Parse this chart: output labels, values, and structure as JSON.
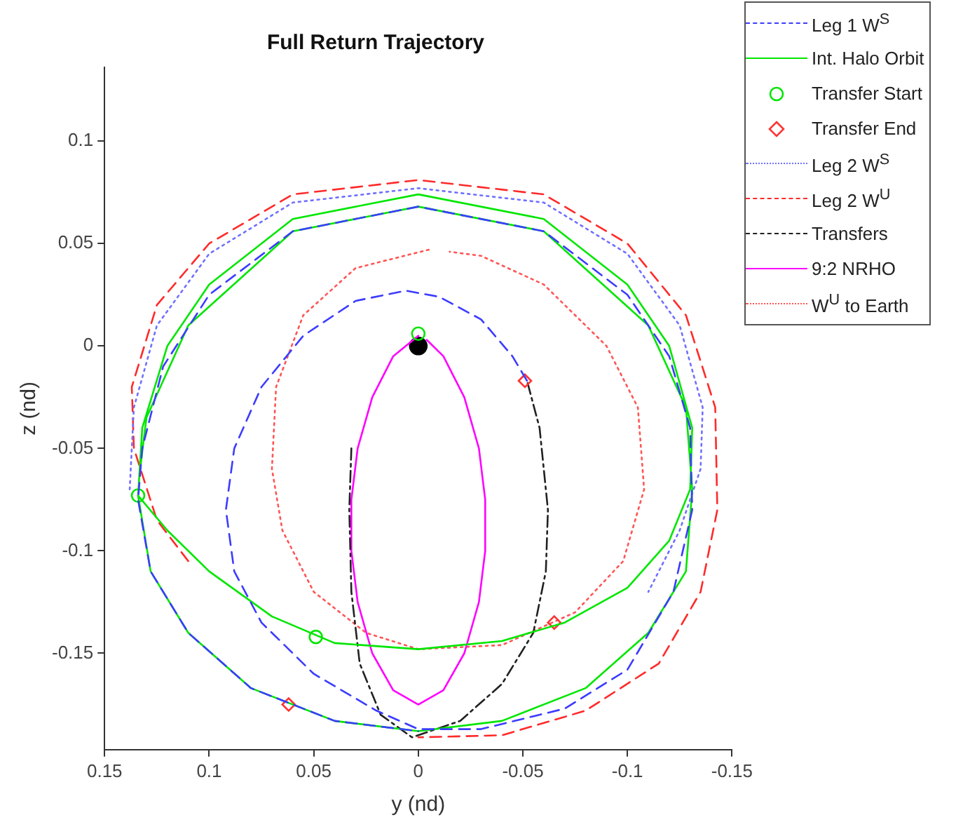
{
  "chart_data": {
    "type": "line",
    "title": "Full Return Trajectory",
    "xlabel": "y (nd)",
    "ylabel": "z (nd)",
    "xlim": [
      0.15,
      -0.15
    ],
    "xticks": [
      0.15,
      0.1,
      0.05,
      0,
      -0.05,
      -0.1,
      -0.15
    ],
    "ylim": [
      -0.197,
      0.136
    ],
    "yticks": [
      -0.15,
      -0.1,
      -0.05,
      0,
      0.05,
      0.1
    ],
    "grid": false,
    "legend": "top right",
    "series": [
      {
        "name": "Leg 1 W$^{S}$",
        "type": "line",
        "color": "#3c3cff",
        "line_style": "dashed",
        "marker": "none",
        "x": [
          -0.052,
          -0.045,
          -0.03,
          -0.01,
          0.006,
          0.03,
          0.055,
          0.075,
          0.088,
          0.092,
          0.088,
          0.075,
          0.05,
          0.02,
          0,
          -0.03,
          -0.07,
          -0.1,
          -0.122,
          -0.131,
          -0.13,
          -0.12,
          -0.1,
          -0.06,
          0,
          0.06,
          0.1,
          0.122,
          0.132,
          0.134,
          0.128,
          0.11,
          0.08,
          0.04,
          0
        ],
        "values": [
          -0.017,
          -0.005,
          0.013,
          0.024,
          0.027,
          0.022,
          0.005,
          -0.02,
          -0.05,
          -0.08,
          -0.11,
          -0.135,
          -0.16,
          -0.178,
          -0.187,
          -0.187,
          -0.177,
          -0.158,
          -0.12,
          -0.08,
          -0.04,
          -0.005,
          0.025,
          0.056,
          0.068,
          0.056,
          0.025,
          -0.01,
          -0.05,
          -0.075,
          -0.11,
          -0.14,
          -0.167,
          -0.183,
          -0.188
        ]
      },
      {
        "name": "Int. Halo Orbit",
        "type": "line",
        "color": "#00e600",
        "line_style": "solid",
        "marker": "none",
        "x": [
          0.134,
          0.132,
          0.12,
          0.1,
          0.06,
          0,
          -0.06,
          -0.1,
          -0.12,
          -0.131,
          -0.13,
          -0.12,
          -0.1,
          -0.07,
          -0.04,
          0,
          0.04,
          0.07,
          0.1,
          0.12,
          0.134,
          0.128,
          0.11,
          0.08,
          0.04,
          0,
          -0.04,
          -0.08,
          -0.11,
          -0.128,
          -0.131,
          -0.128,
          -0.11,
          -0.06,
          0,
          0.06,
          0.11,
          0.13,
          0.133
        ],
        "values": [
          -0.073,
          -0.04,
          0.0,
          0.03,
          0.062,
          0.074,
          0.062,
          0.03,
          0,
          -0.04,
          -0.07,
          -0.095,
          -0.118,
          -0.135,
          -0.144,
          -0.148,
          -0.145,
          -0.132,
          -0.11,
          -0.09,
          -0.073,
          -0.11,
          -0.14,
          -0.167,
          -0.183,
          -0.188,
          -0.183,
          -0.167,
          -0.14,
          -0.11,
          -0.07,
          -0.03,
          0.01,
          0.056,
          0.068,
          0.056,
          0.01,
          -0.035,
          -0.06
        ]
      },
      {
        "name": "Transfer Start",
        "type": "scatter",
        "color": "#00e600",
        "marker": "circle",
        "x": [
          0.134,
          0.049,
          0
        ],
        "values": [
          -0.073,
          -0.142,
          0.006
        ]
      },
      {
        "name": "Transfer End",
        "type": "scatter",
        "color": "#ff3333",
        "marker": "diamond",
        "x": [
          -0.051,
          -0.065,
          0.062
        ],
        "values": [
          -0.017,
          -0.135,
          -0.175
        ]
      },
      {
        "name": "Leg 2 W$^{S}$",
        "type": "line",
        "color": "#7070ff",
        "line_style": "dotted",
        "marker": "none",
        "x": [
          0.138,
          0.136,
          0.125,
          0.1,
          0.06,
          0,
          -0.06,
          -0.1,
          -0.125,
          -0.136,
          -0.135,
          -0.125,
          -0.11
        ],
        "values": [
          -0.07,
          -0.03,
          0.01,
          0.045,
          0.07,
          0.077,
          0.07,
          0.045,
          0.01,
          -0.03,
          -0.06,
          -0.09,
          -0.12
        ]
      },
      {
        "name": "Leg 2 W$^{U}$",
        "type": "line",
        "color": "#ff2a2a",
        "line_style": "dashed",
        "marker": "none",
        "x": [
          0.11,
          0.125,
          0.136,
          0.137,
          0.125,
          0.1,
          0.06,
          0,
          -0.06,
          -0.1,
          -0.128,
          -0.142,
          -0.143,
          -0.135,
          -0.115,
          -0.08,
          -0.04,
          0
        ],
        "values": [
          -0.105,
          -0.085,
          -0.05,
          -0.02,
          0.02,
          0.05,
          0.074,
          0.081,
          0.074,
          0.05,
          0.015,
          -0.03,
          -0.08,
          -0.12,
          -0.155,
          -0.178,
          -0.19,
          -0.191
        ]
      },
      {
        "name": "Transfers",
        "type": "line",
        "color": "#222222",
        "line_style": "dashdot",
        "marker": "none",
        "x": [
          0.032,
          0.033,
          0.032,
          0.028,
          0.018,
          0.003,
          -0.02,
          -0.04,
          -0.055,
          -0.061,
          -0.062,
          -0.058,
          -0.052
        ],
        "values": [
          -0.05,
          -0.08,
          -0.12,
          -0.155,
          -0.18,
          -0.191,
          -0.183,
          -0.165,
          -0.14,
          -0.11,
          -0.08,
          -0.04,
          -0.017
        ]
      },
      {
        "name": "9:2 NRHO",
        "type": "line",
        "color": "#ff00ff",
        "line_style": "solid",
        "marker": "none",
        "x": [
          0,
          0.012,
          0.022,
          0.029,
          0.032,
          0.032,
          0.029,
          0.022,
          0.012,
          0,
          -0.012,
          -0.022,
          -0.029,
          -0.032,
          -0.032,
          -0.029,
          -0.022,
          -0.012,
          -0.004
        ],
        "values": [
          0.005,
          -0.005,
          -0.025,
          -0.05,
          -0.075,
          -0.1,
          -0.125,
          -0.15,
          -0.168,
          -0.175,
          -0.168,
          -0.15,
          -0.125,
          -0.1,
          -0.075,
          -0.05,
          -0.025,
          -0.005,
          0.003
        ]
      },
      {
        "name": "W$^{U}$ to Earth",
        "type": "line",
        "color": "#ff5555",
        "line_style": "dotted",
        "marker": "none",
        "x": [
          -0.005,
          0.03,
          0.055,
          0.068,
          0.07,
          0.065,
          0.05,
          0.025,
          0,
          -0.04,
          -0.075,
          -0.098,
          -0.108,
          -0.105,
          -0.09,
          -0.06,
          -0.03,
          -0.015
        ],
        "values": [
          0.047,
          0.038,
          0.015,
          -0.02,
          -0.06,
          -0.09,
          -0.12,
          -0.14,
          -0.148,
          -0.146,
          -0.13,
          -0.105,
          -0.07,
          -0.03,
          0.0,
          0.03,
          0.044,
          0.046
        ]
      },
      {
        "type": "scatter",
        "color": "#000000",
        "marker": "circle",
        "x": [
          0
        ],
        "values": [
          0
        ]
      }
    ]
  }
}
